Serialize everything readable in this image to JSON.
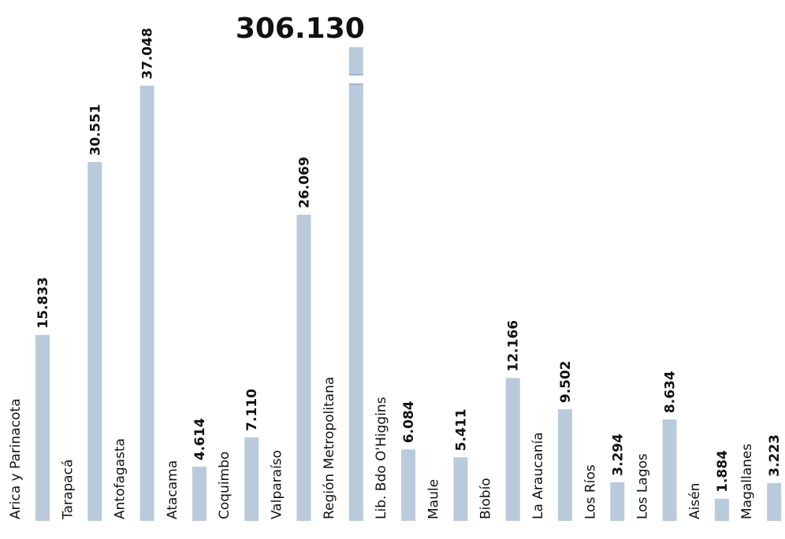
{
  "chart_data": {
    "type": "bar",
    "orientation": "vertical",
    "title": "",
    "xlabel": "",
    "ylabel": "",
    "categories": [
      "Arica y Parinacota",
      "Tarapacá",
      "Antofagasta",
      "Atacama",
      "Coquimbo",
      "Valparaíso",
      "Región Metropolitana",
      "Lib. Bdo O'Higgins",
      "Maule",
      "Biobío",
      "La Araucanía",
      "Los Ríos",
      "Los Lagos",
      "Aisén",
      "Magallanes"
    ],
    "values": [
      15833,
      30551,
      37048,
      4614,
      7110,
      26069,
      306130,
      6084,
      5411,
      12166,
      9502,
      3294,
      8634,
      1884,
      3223
    ],
    "value_labels": [
      "15.833",
      "30.551",
      "37.048",
      "4.614",
      "7.110",
      "26.069",
      "306.130",
      "6.084",
      "5.411",
      "12.166",
      "9.502",
      "3.294",
      "8.634",
      "1.884",
      "3.223"
    ],
    "ylim": [
      0,
      40000
    ],
    "broken_axis_series_index": 6,
    "grid": false,
    "legend": "none",
    "bar_color": "#b9cadb"
  }
}
